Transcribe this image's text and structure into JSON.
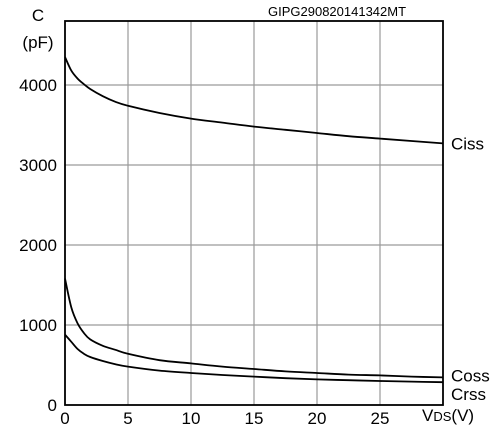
{
  "chart_data": {
    "type": "line",
    "id_text": "GIPG290820141342MT",
    "ylabel_line1": "C",
    "ylabel_line2": "(pF)",
    "xlabel_main": "V",
    "xlabel_sub": "DS",
    "xlabel_unit": "(V)",
    "xlim": [
      0,
      30
    ],
    "ylim": [
      0,
      4800
    ],
    "grid": true,
    "x_ticks": [
      0,
      5,
      10,
      15,
      20,
      25
    ],
    "y_ticks": [
      0,
      1000,
      2000,
      3000,
      4000
    ],
    "series": [
      {
        "name": "Ciss",
        "x": [
          0,
          0.5,
          1,
          1.5,
          2,
          3,
          4,
          5,
          7.5,
          10,
          12.5,
          15,
          17.5,
          20,
          22.5,
          25,
          27.5,
          30
        ],
        "y": [
          4350,
          4180,
          4080,
          4010,
          3950,
          3860,
          3790,
          3740,
          3650,
          3580,
          3530,
          3480,
          3440,
          3400,
          3360,
          3330,
          3300,
          3270
        ]
      },
      {
        "name": "Coss",
        "x": [
          0,
          0.5,
          1,
          1.5,
          2,
          3,
          4,
          5,
          7.5,
          10,
          12.5,
          15,
          17.5,
          20,
          22.5,
          25,
          27.5,
          30
        ],
        "y": [
          1580,
          1220,
          1020,
          900,
          820,
          740,
          690,
          640,
          560,
          520,
          480,
          450,
          420,
          400,
          380,
          370,
          355,
          345
        ]
      },
      {
        "name": "Crss",
        "x": [
          0,
          0.5,
          1,
          1.5,
          2,
          3,
          4,
          5,
          7.5,
          10,
          12.5,
          15,
          17.5,
          20,
          22.5,
          25,
          27.5,
          30
        ],
        "y": [
          880,
          790,
          700,
          640,
          600,
          550,
          510,
          480,
          430,
          400,
          375,
          355,
          335,
          320,
          310,
          300,
          292,
          285
        ]
      }
    ]
  }
}
